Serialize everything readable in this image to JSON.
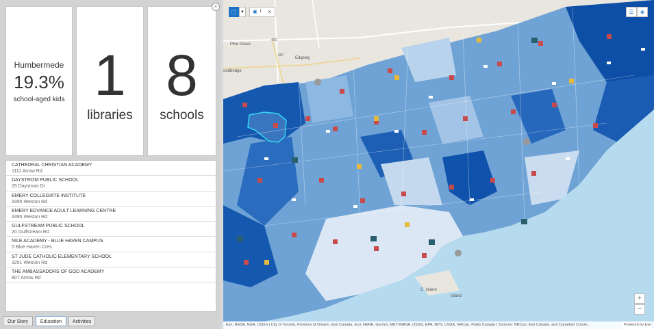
{
  "summary": {
    "area_name": "Humbermede",
    "percent": "19.3%",
    "percent_label": "school-aged kids",
    "libraries_count": "1",
    "libraries_label": "libraries",
    "schools_count": "8",
    "schools_label": "schools"
  },
  "schools": [
    {
      "name": "CATHEDRAL CHRISTIAN ACADEMY",
      "address": "1111 Arrow Rd"
    },
    {
      "name": "DAYSTROM PUBLIC SCHOOL",
      "address": "25 Daystrom Dr"
    },
    {
      "name": "EMERY COLLEGIATE INSTITUTE",
      "address": "3395 Weston Rd"
    },
    {
      "name": "EMERY EDVANCE ADULT LEARNING CENTRE",
      "address": "3395 Weston Rd"
    },
    {
      "name": "GULFSTREAM PUBLIC SCHOOL",
      "address": "20 Gulfstream Rd"
    },
    {
      "name": "NILE ACADEMY - BLUE HAVEN CAMPUS",
      "address": "5 Blue Haven Cres"
    },
    {
      "name": "ST JUDE CATHOLIC ELEMENTARY SCHOOL",
      "address": "3251 Weston Rd"
    },
    {
      "name": "THE AMBASSADORS OF GOD ACADEMY",
      "address": "807 Arrow Rd"
    }
  ],
  "tabs": [
    {
      "label": "Our Story"
    },
    {
      "label": "Education"
    },
    {
      "label": "Activities"
    }
  ],
  "active_tab": "Education",
  "map": {
    "labels": {
      "pine_grove": "Pine Grove",
      "edgeley": "Edgeley",
      "woodbridge": "oodbridge",
      "highway_400": "400",
      "highway_407": "407",
      "island": "C. Island",
      "island2": "Island"
    },
    "selection_count": "1",
    "attribution": "Esri, NASA, NGA, USGS | City of Toronto, Province of Ontario, Esri Canada, Esri, HERE, Garmin, METI/NASA, USGS, EPA, NPS, USDA, NRCan, Parks Canada | Sources: NRCan, Esri Canada, and Canadian Comm...",
    "powered_by": "Powered by Esri",
    "zoom_in": "+",
    "zoom_out": "−",
    "colors": {
      "water": "#b6dbef",
      "land": "#e8e6df",
      "choropleth_dark": "#0d4ea6",
      "choropleth_mid": "#3d7fc4",
      "choropleth_light": "#a9c8e6",
      "choropleth_lightest": "#dbe7f4",
      "selected_outline": "#33d6f2",
      "library_marker": "#2c5f6e",
      "school_marker_red": "#c94a4a",
      "school_marker_yellow": "#e6b93c"
    }
  }
}
